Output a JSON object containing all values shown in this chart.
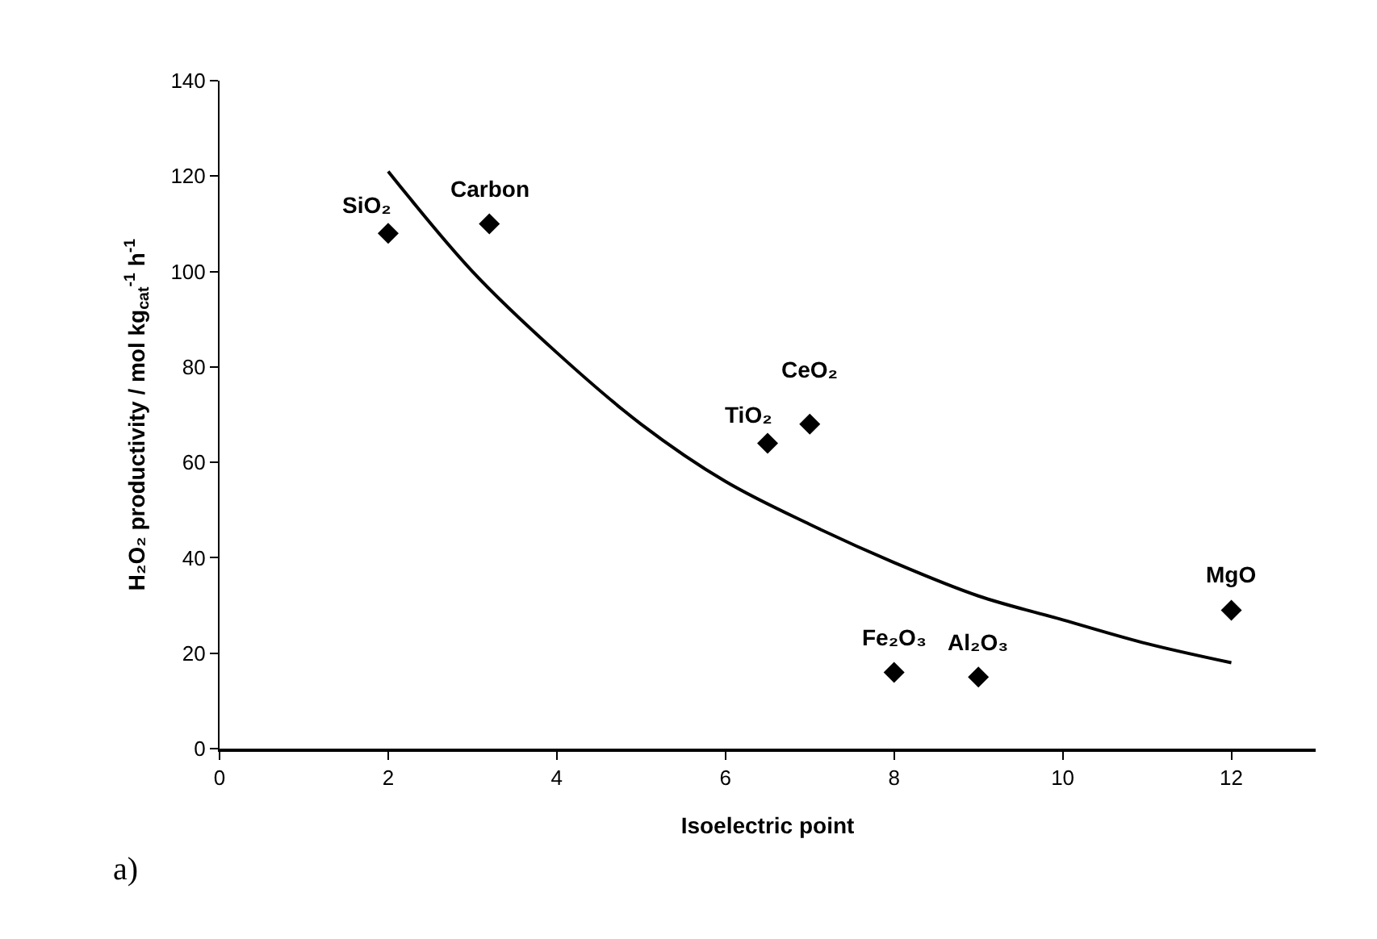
{
  "chart_data": {
    "type": "scatter",
    "xlabel": "Isoelectric point",
    "ylabel": "H₂O₂ productivity / mol kg$_{cat}$$^{-1}$ h$^{-1}$",
    "xlim": [
      0,
      13
    ],
    "ylim": [
      0,
      140
    ],
    "xticks": [
      0,
      2,
      4,
      6,
      8,
      10,
      12
    ],
    "yticks": [
      0,
      20,
      40,
      60,
      80,
      100,
      120,
      140
    ],
    "grid": false,
    "marker": "diamond",
    "series": [
      {
        "color": "#000000",
        "x": [
          2,
          3.2,
          6.5,
          7,
          8,
          9,
          12
        ],
        "values": [
          108,
          110,
          64,
          68,
          16,
          15,
          29
        ]
      },
      {
        "type": "line",
        "color": "#000000",
        "marker": "none",
        "line_style": "solid",
        "x": [
          2,
          3,
          4,
          5,
          6,
          7,
          8,
          9,
          10,
          11,
          12
        ],
        "values": [
          121,
          100,
          83,
          68,
          56,
          47,
          39,
          32,
          27,
          22,
          18
        ]
      }
    ],
    "annotations": [
      {
        "text": "SiO₂",
        "x": 2,
        "y": 108
      },
      {
        "text": "Carbon",
        "x": 3.2,
        "y": 110
      },
      {
        "text": "TiO₂",
        "x": 6.5,
        "y": 64
      },
      {
        "text": "CeO₂",
        "x": 7,
        "y": 68
      },
      {
        "text": "Fe₂O₃",
        "x": 8,
        "y": 16
      },
      {
        "text": "Al₂O₃",
        "x": 9,
        "y": 15
      },
      {
        "text": "MgO",
        "x": 12,
        "y": 29
      },
      "a)"
    ]
  }
}
